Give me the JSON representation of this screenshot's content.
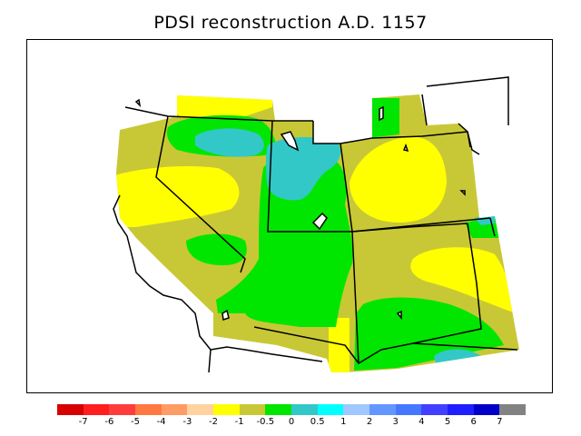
{
  "title": "PDSI reconstruction A.D. 1157",
  "colors": {
    "yellow": "#ffff00",
    "olive": "#c8c837",
    "green": "#00e600",
    "cyan": "#32c8c8",
    "frame": "#000000",
    "background": "#ffffff"
  },
  "legend": {
    "colors": [
      "#d70000",
      "#ff1e1e",
      "#ff3c3c",
      "#ff7841",
      "#ff9b64",
      "#ffd2a0",
      "#ffff00",
      "#c8c837",
      "#00e600",
      "#32c8c8",
      "#00ffff",
      "#a0c8ff",
      "#6496ff",
      "#4678ff",
      "#4140ff",
      "#1e1eff",
      "#0000c8",
      "#828282"
    ],
    "labels": [
      "-7",
      "-6",
      "-5",
      "-4",
      "-3",
      "-2",
      "-1",
      "-0.5",
      "0",
      "0.5",
      "1",
      "2",
      "3",
      "4",
      "5",
      "6",
      "7"
    ]
  }
}
